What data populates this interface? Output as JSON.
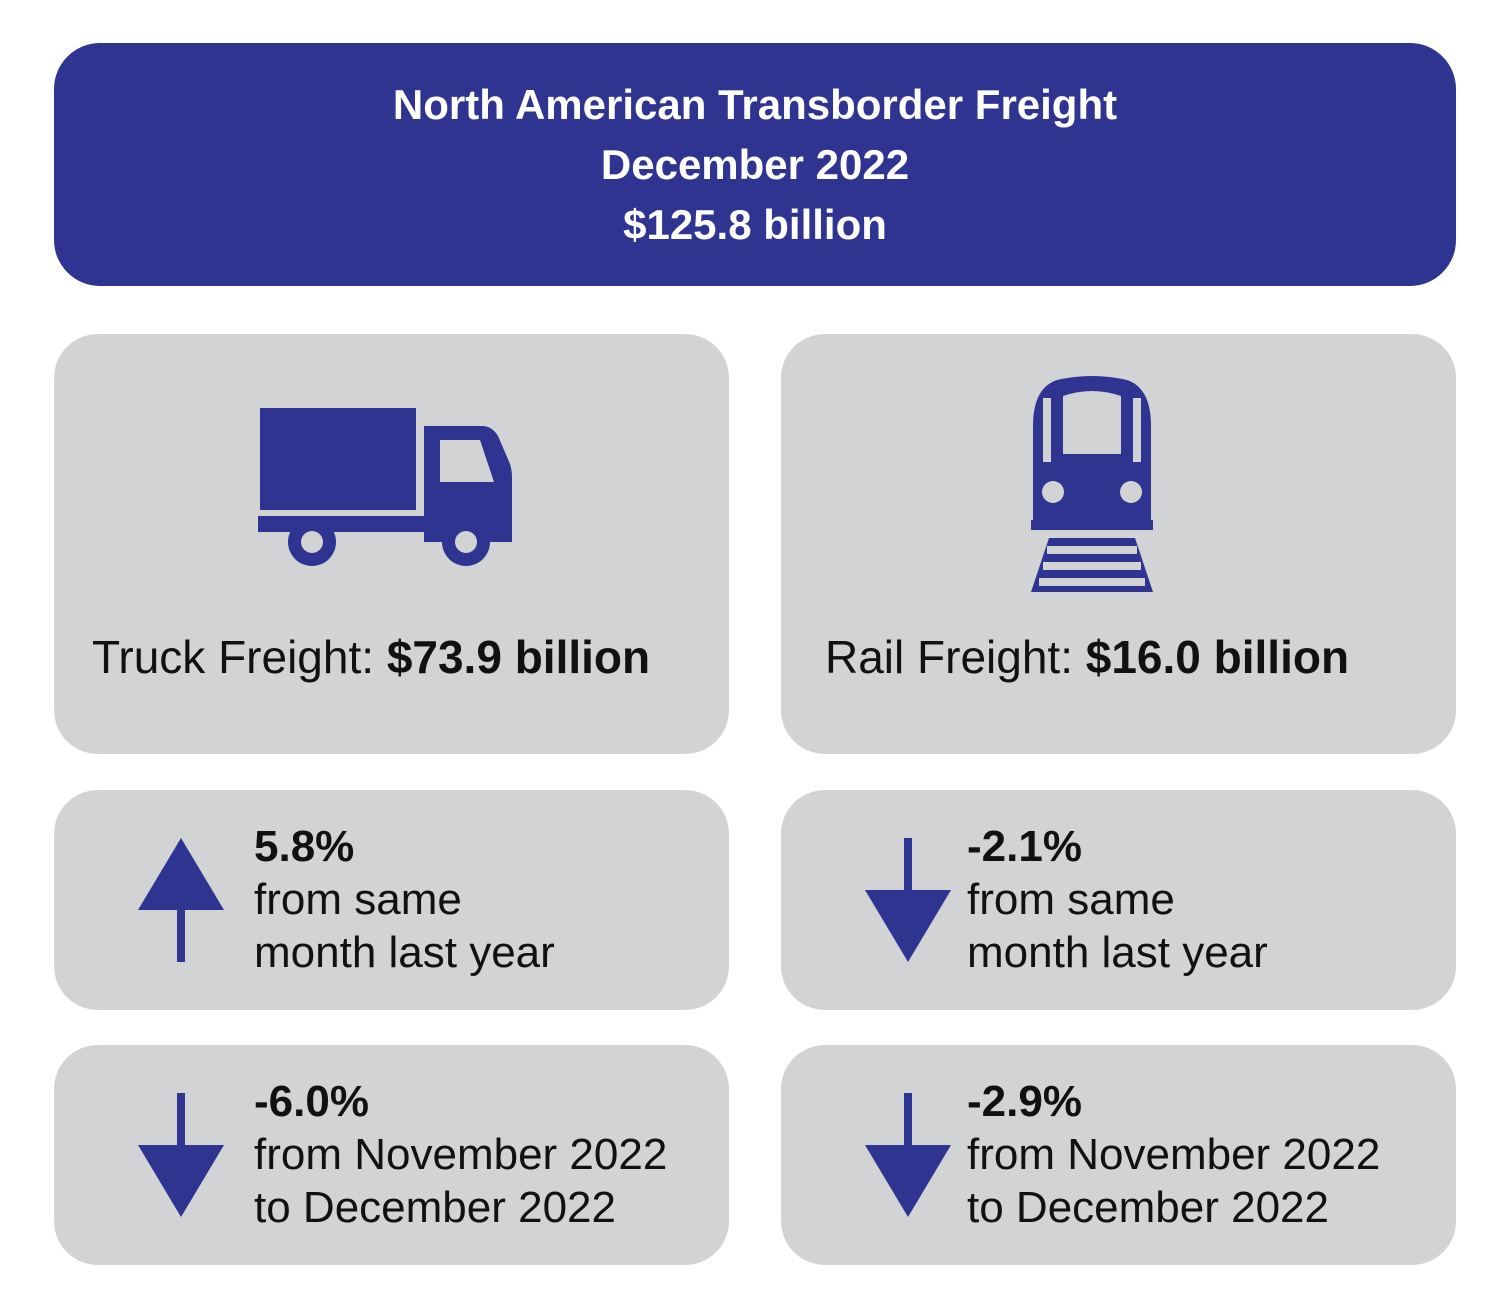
{
  "header": {
    "title": "North American Transborder Freight",
    "period": "December 2022",
    "total": "$125.8 billion",
    "background_color": "#2e3490"
  },
  "colors": {
    "accent": "#2e3490",
    "card_background": "#d2d3d5"
  },
  "modes": {
    "truck": {
      "icon": "truck-icon",
      "label": "Truck Freight: ",
      "value": "$73.9 billion",
      "year_over_year": {
        "direction": "up",
        "icon": "arrow-up-icon",
        "percent": "5.8%",
        "line1": "from same",
        "line2": "month last year"
      },
      "month_over_month": {
        "direction": "down",
        "icon": "arrow-down-icon",
        "percent": "-6.0%",
        "line1": "from November 2022",
        "line2": "to December 2022"
      }
    },
    "rail": {
      "icon": "train-icon",
      "label": "Rail Freight: ",
      "value": "$16.0 billion",
      "year_over_year": {
        "direction": "down",
        "icon": "arrow-down-icon",
        "percent": "-2.1%",
        "line1": "from same",
        "line2": "month last year"
      },
      "month_over_month": {
        "direction": "down",
        "icon": "arrow-down-icon",
        "percent": "-2.9%",
        "line1": "from November 2022",
        "line2": "to December 2022"
      }
    }
  }
}
